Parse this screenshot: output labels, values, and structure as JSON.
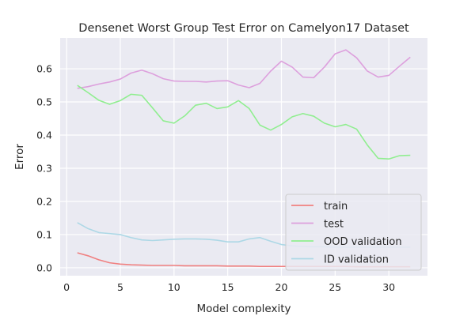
{
  "chart_data": {
    "type": "line",
    "title": "Densenet Worst Group Test Error on Camelyon17 Dataset",
    "xlabel": "Model complexity",
    "ylabel": "Error",
    "xlim": [
      -0.6,
      33.6
    ],
    "ylim": [
      -0.024,
      0.693
    ],
    "xticks": [
      0,
      5,
      10,
      15,
      20,
      25,
      30
    ],
    "yticks": [
      0.0,
      0.1,
      0.2,
      0.3,
      0.4,
      0.5,
      0.6
    ],
    "xtick_labels": [
      "0",
      "5",
      "10",
      "15",
      "20",
      "25",
      "30"
    ],
    "ytick_labels": [
      "0.0",
      "0.1",
      "0.2",
      "0.3",
      "0.4",
      "0.5",
      "0.6"
    ],
    "grid": true,
    "legend_position": "lower right",
    "x": [
      1,
      2,
      3,
      4,
      5,
      6,
      7,
      8,
      9,
      10,
      11,
      12,
      13,
      14,
      15,
      16,
      17,
      18,
      19,
      20,
      21,
      22,
      23,
      24,
      25,
      26,
      27,
      28,
      29,
      30,
      31,
      32
    ],
    "series": [
      {
        "name": "train",
        "color": "#f08080",
        "values": [
          0.045,
          0.036,
          0.024,
          0.015,
          0.011,
          0.009,
          0.008,
          0.007,
          0.007,
          0.007,
          0.006,
          0.006,
          0.006,
          0.006,
          0.005,
          0.005,
          0.005,
          0.004,
          0.004,
          0.004,
          0.004,
          0.004,
          0.004,
          0.004,
          0.004,
          0.004,
          0.003,
          0.003,
          0.003,
          0.003,
          0.003,
          0.003
        ]
      },
      {
        "name": "test",
        "color": "#dda0dd",
        "values": [
          0.541,
          0.546,
          0.554,
          0.56,
          0.569,
          0.587,
          0.596,
          0.585,
          0.57,
          0.563,
          0.562,
          0.562,
          0.56,
          0.563,
          0.564,
          0.551,
          0.543,
          0.556,
          0.593,
          0.623,
          0.605,
          0.575,
          0.573,
          0.605,
          0.645,
          0.657,
          0.633,
          0.593,
          0.575,
          0.58,
          0.608,
          0.635
        ]
      },
      {
        "name": "OOD validation",
        "color": "#90ee90",
        "values": [
          0.55,
          0.528,
          0.505,
          0.493,
          0.504,
          0.523,
          0.52,
          0.482,
          0.443,
          0.436,
          0.458,
          0.49,
          0.496,
          0.48,
          0.485,
          0.504,
          0.48,
          0.43,
          0.415,
          0.432,
          0.455,
          0.465,
          0.457,
          0.436,
          0.425,
          0.432,
          0.418,
          0.37,
          0.33,
          0.328,
          0.338,
          0.339
        ]
      },
      {
        "name": "ID validation",
        "color": "#add8e6",
        "values": [
          0.136,
          0.118,
          0.106,
          0.103,
          0.1,
          0.091,
          0.084,
          0.082,
          0.084,
          0.086,
          0.087,
          0.087,
          0.086,
          0.083,
          0.078,
          0.078,
          0.087,
          0.091,
          0.08,
          0.07,
          0.066,
          0.064,
          0.063,
          0.063,
          0.062,
          0.062,
          0.062,
          0.062,
          0.062,
          0.062,
          0.062,
          0.062
        ]
      }
    ]
  }
}
